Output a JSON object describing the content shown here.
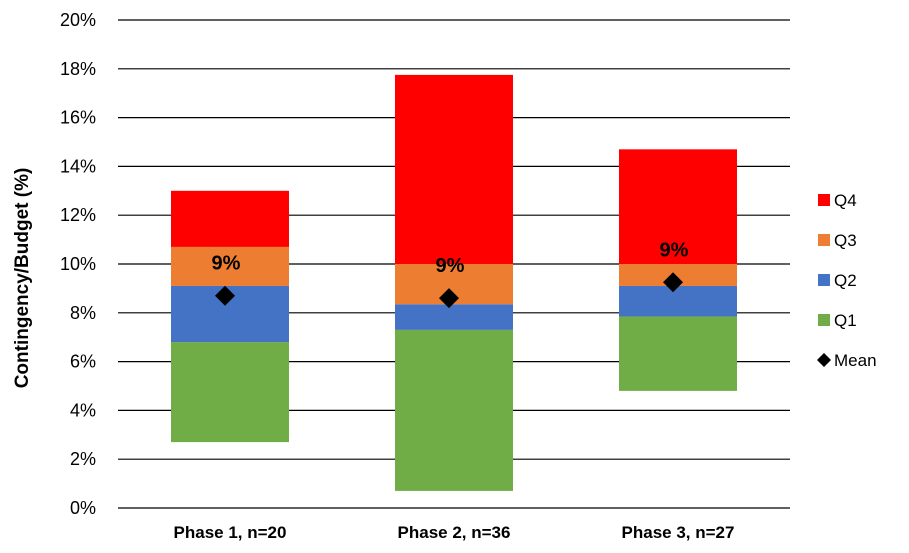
{
  "chart_data": {
    "type": "bar",
    "stacked": true,
    "floating": true,
    "categories": [
      "Phase 1, n=20",
      "Phase 2, n=36",
      "Phase 3, n=27"
    ],
    "ylabel": "Contingency/Budget (%)",
    "xlabel": "",
    "ylim": [
      0,
      20
    ],
    "yticks": [
      "0%",
      "2%",
      "4%",
      "6%",
      "8%",
      "10%",
      "12%",
      "14%",
      "16%",
      "18%",
      "20%"
    ],
    "grid": true,
    "legend_position": "right",
    "series": [
      {
        "name": "Q1",
        "color": "#70ad47",
        "lower": [
          2.7,
          0.7,
          4.8
        ],
        "upper": [
          6.8,
          7.3,
          7.85
        ]
      },
      {
        "name": "Q2",
        "color": "#4472c4",
        "lower": [
          6.8,
          7.3,
          7.85
        ],
        "upper": [
          9.1,
          8.35,
          9.1
        ]
      },
      {
        "name": "Q3",
        "color": "#ed7d31",
        "lower": [
          9.1,
          8.35,
          9.1
        ],
        "upper": [
          10.7,
          10.0,
          10.0
        ]
      },
      {
        "name": "Q4",
        "color": "#ff0000",
        "lower": [
          10.7,
          10.0,
          10.0
        ],
        "upper": [
          13.0,
          17.75,
          14.7
        ]
      }
    ],
    "mean": {
      "name": "Mean",
      "values": [
        8.7,
        8.6,
        9.25
      ],
      "labels": [
        "9%",
        "9%",
        "9%"
      ],
      "color": "#000000"
    }
  }
}
